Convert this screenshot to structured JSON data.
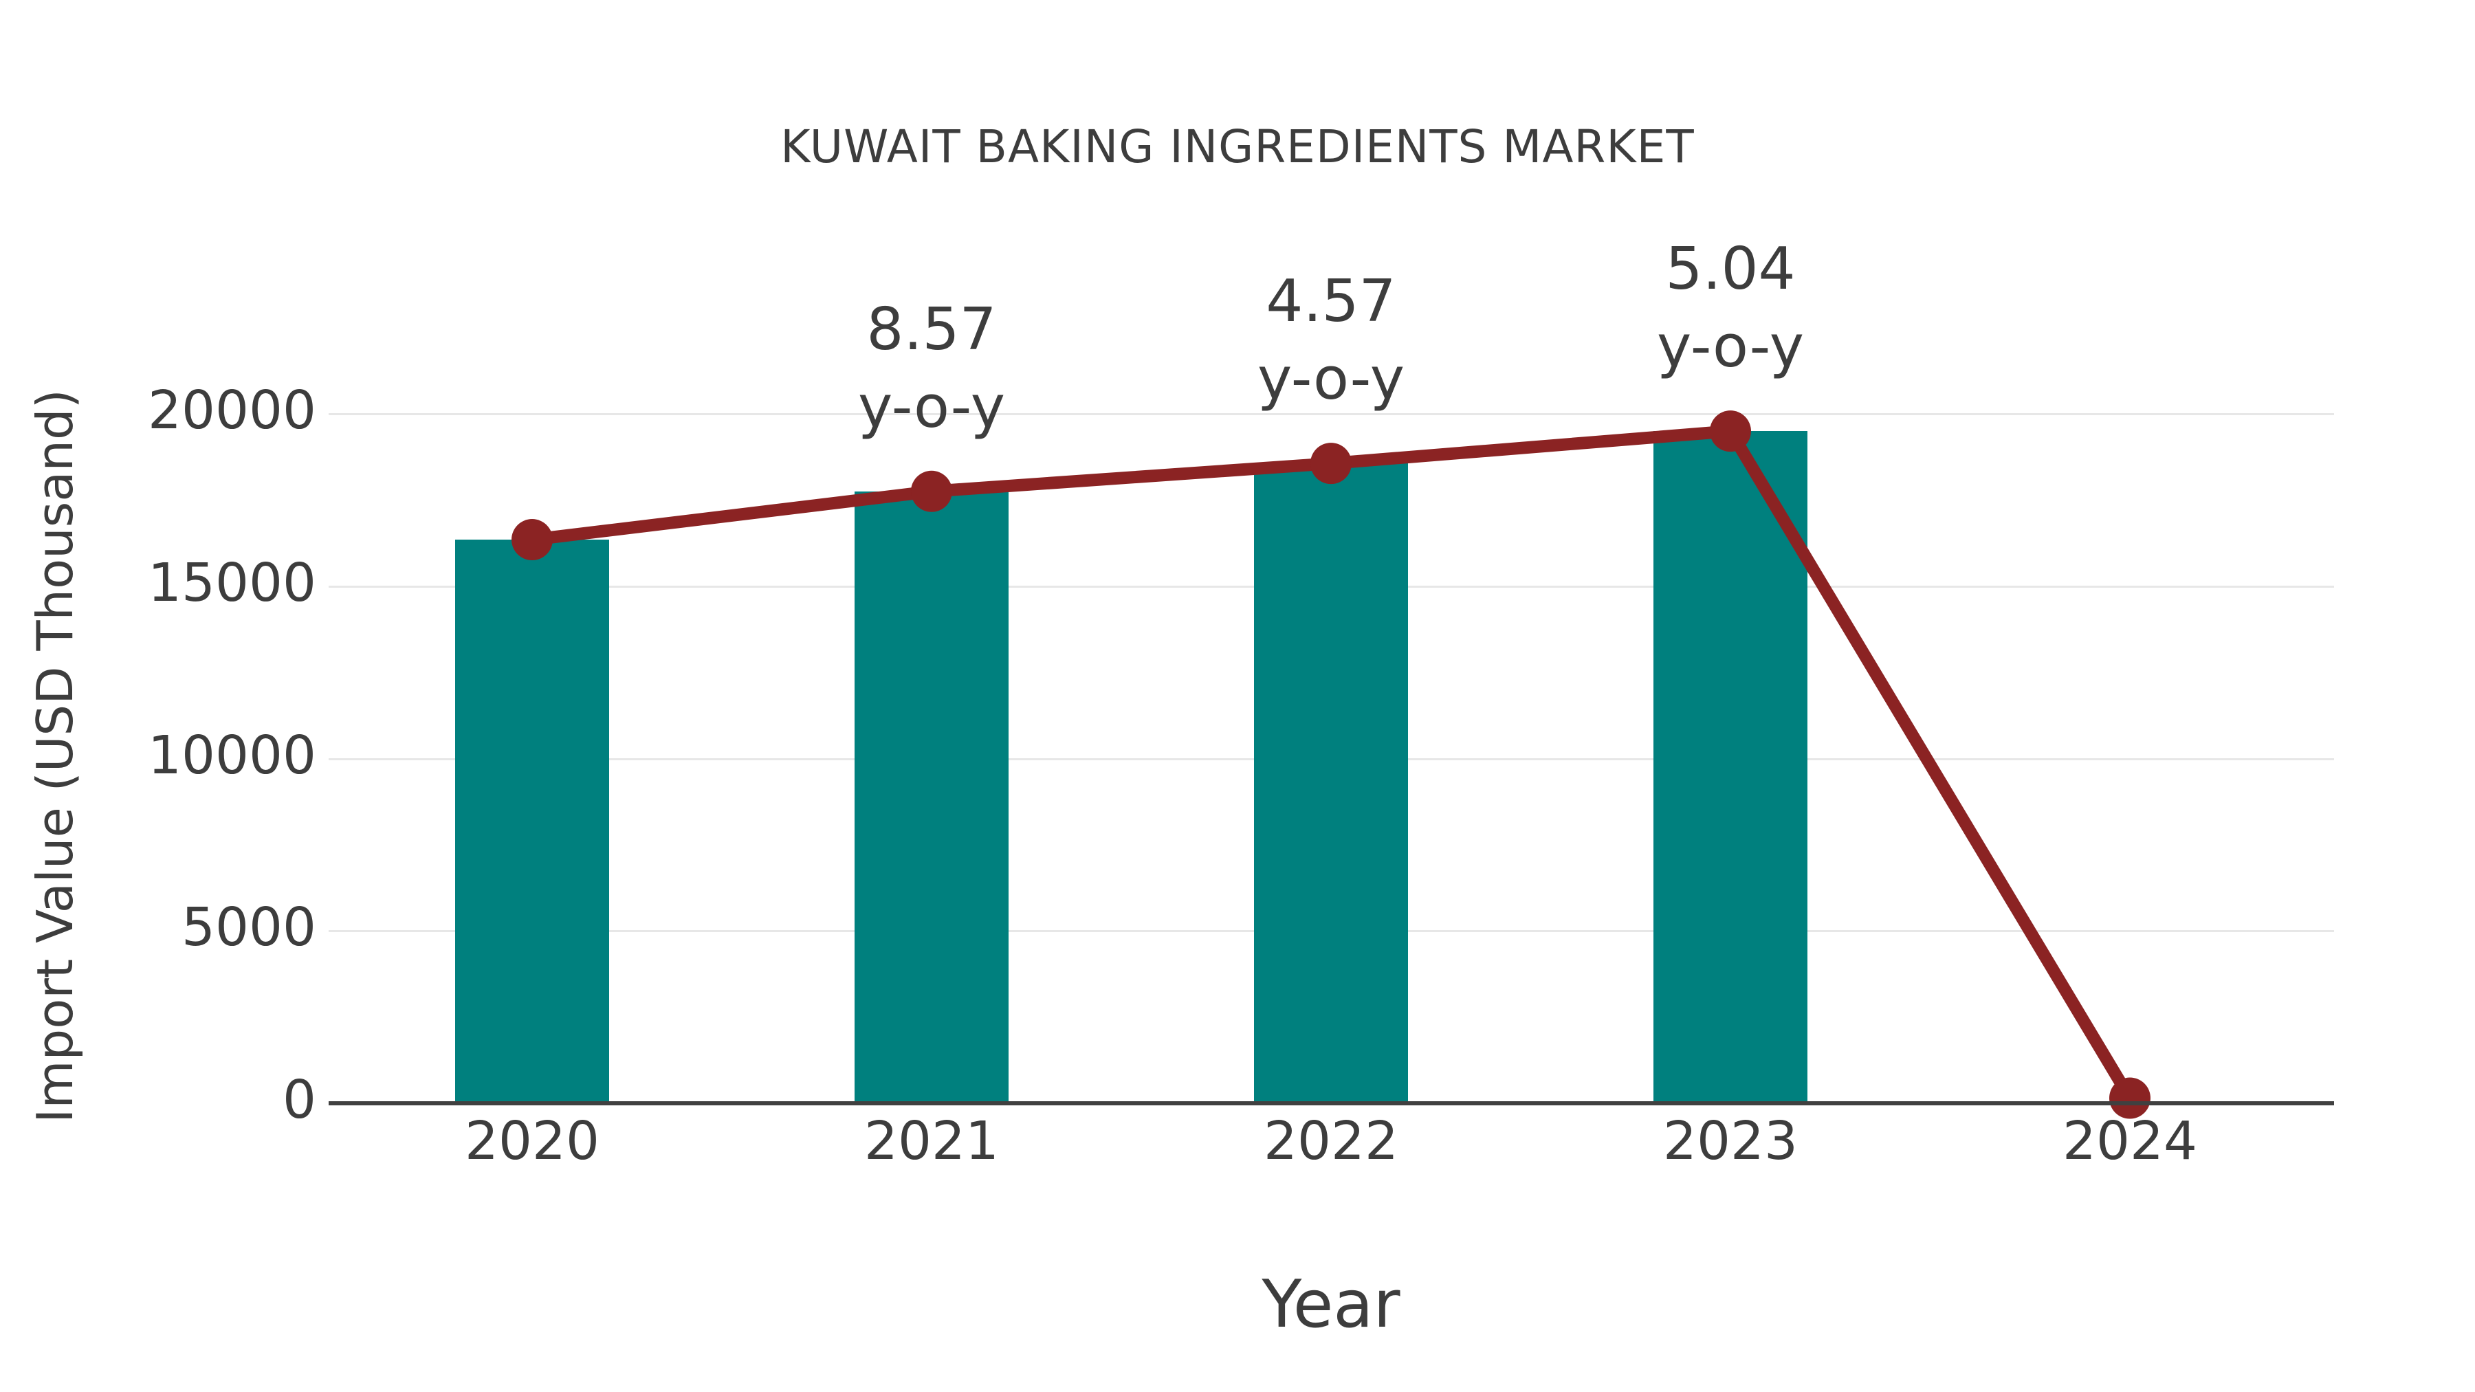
{
  "chart_data": {
    "type": "bar",
    "title": "KUWAIT BAKING INGREDIENTS MARKET",
    "xlabel": "Year",
    "ylabel": "Import Value (USD Thousand)",
    "categories": [
      "2020",
      "2021",
      "2022",
      "2023",
      "2024"
    ],
    "series": [
      {
        "name": "Import Value bars",
        "type": "bar",
        "values": [
          16350,
          17751,
          18562,
          19498,
          null
        ]
      },
      {
        "name": "Import Value trend line",
        "type": "line",
        "values": [
          16350,
          17751,
          18562,
          19498,
          150
        ]
      }
    ],
    "annotations": [
      {
        "category": "2021",
        "line1": "8.57",
        "line2": "y-o-y"
      },
      {
        "category": "2022",
        "line1": "4.57",
        "line2": "y-o-y"
      },
      {
        "category": "2023",
        "line1": "5.04",
        "line2": "y-o-y"
      }
    ],
    "yticks": [
      "0",
      "5000",
      "10000",
      "15000",
      "20000"
    ],
    "ylim": [
      0,
      21000
    ],
    "grid": "horizontal-only",
    "legend": "none",
    "colors": {
      "bar": "#00807E",
      "line": "#8B2323",
      "marker": "#8B2323",
      "text": "#3d3d3d",
      "axis": "#404040",
      "gridline": "#e7e7e7",
      "background": "#ffffff"
    }
  }
}
